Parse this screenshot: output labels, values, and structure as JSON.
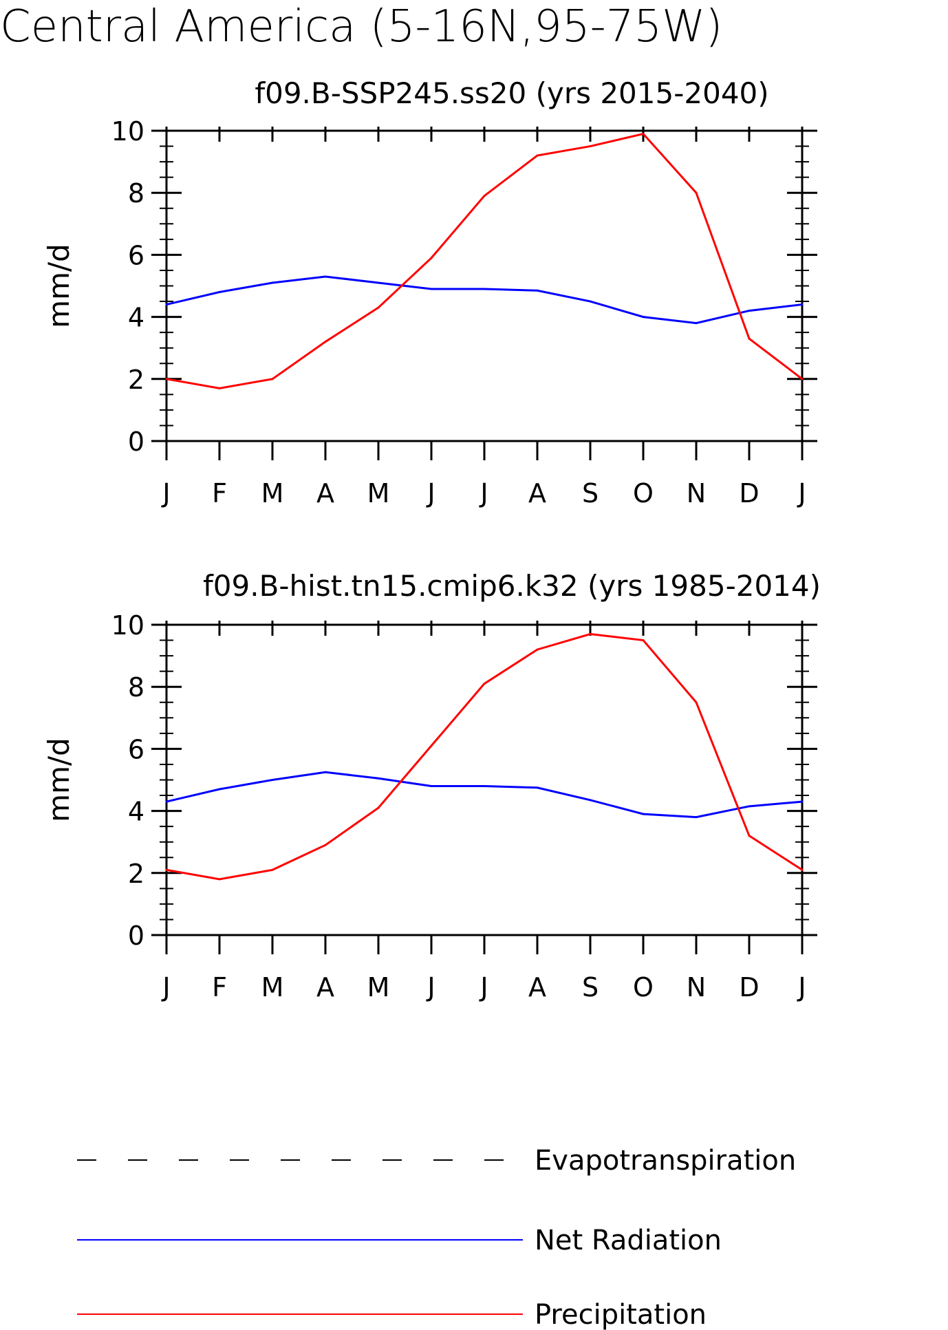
{
  "title": "Central America (5-16N,95-75W)",
  "legend": [
    {
      "label": "Evapotranspiration",
      "color": "#000000",
      "dash": "dashed"
    },
    {
      "label": "Net Radiation",
      "color": "#0000ff",
      "dash": "solid"
    },
    {
      "label": "Precipitation",
      "color": "#ff0000",
      "dash": "solid"
    }
  ],
  "chart_data": [
    {
      "type": "line",
      "title": "f09.B-SSP245.ss20 (yrs 2015-2040)",
      "xlabel": "",
      "ylabel": "mm/d",
      "categories": [
        "J",
        "F",
        "M",
        "A",
        "M",
        "J",
        "J",
        "A",
        "S",
        "O",
        "N",
        "D",
        "J"
      ],
      "ylim": [
        0,
        10
      ],
      "yticks": [
        "0",
        "2",
        "4",
        "6",
        "8",
        "10"
      ],
      "grid": false,
      "series": [
        {
          "name": "Net Radiation",
          "color": "#0000ff",
          "values": [
            4.4,
            4.8,
            5.1,
            5.3,
            5.1,
            4.9,
            4.9,
            4.85,
            4.5,
            4.0,
            3.8,
            4.2,
            4.4
          ]
        },
        {
          "name": "Precipitation",
          "color": "#ff0000",
          "values": [
            2.0,
            1.7,
            2.0,
            3.2,
            4.3,
            5.9,
            7.9,
            9.2,
            9.5,
            9.9,
            8.0,
            3.3,
            2.0
          ]
        }
      ]
    },
    {
      "type": "line",
      "title": "f09.B-hist.tn15.cmip6.k32 (yrs 1985-2014)",
      "xlabel": "",
      "ylabel": "mm/d",
      "categories": [
        "J",
        "F",
        "M",
        "A",
        "M",
        "J",
        "J",
        "A",
        "S",
        "O",
        "N",
        "D",
        "J"
      ],
      "ylim": [
        0,
        10
      ],
      "yticks": [
        "0",
        "2",
        "4",
        "6",
        "8",
        "10"
      ],
      "grid": false,
      "series": [
        {
          "name": "Net Radiation",
          "color": "#0000ff",
          "values": [
            4.3,
            4.7,
            5.0,
            5.25,
            5.05,
            4.8,
            4.8,
            4.75,
            4.35,
            3.9,
            3.8,
            4.15,
            4.3
          ]
        },
        {
          "name": "Precipitation",
          "color": "#ff0000",
          "values": [
            2.1,
            1.8,
            2.1,
            2.9,
            4.1,
            6.1,
            8.1,
            9.2,
            9.7,
            9.5,
            7.5,
            3.2,
            2.1
          ]
        }
      ]
    }
  ]
}
